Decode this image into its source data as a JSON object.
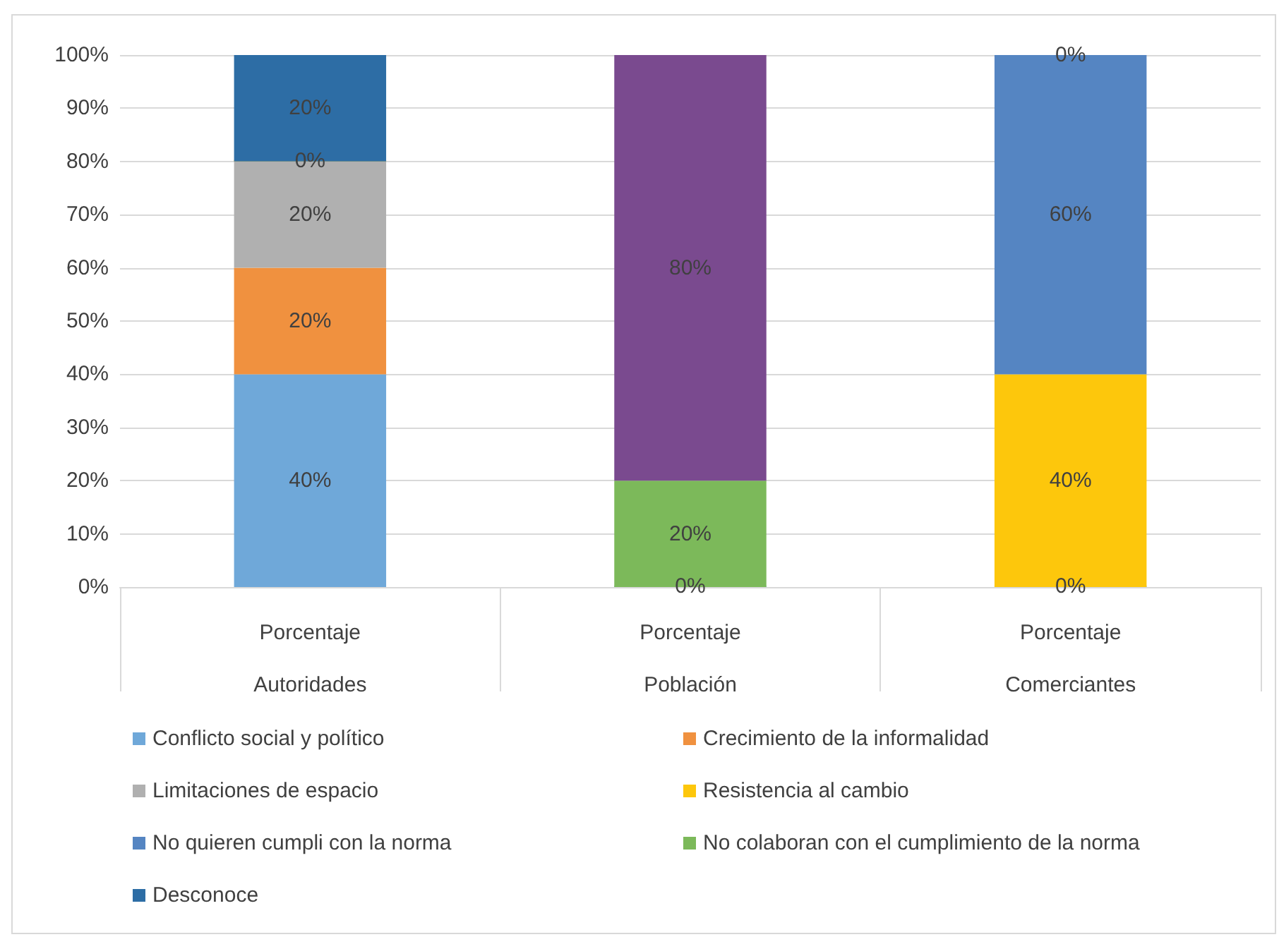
{
  "chart_data": {
    "type": "bar",
    "stacked": true,
    "categories": [
      "Porcentaje\nAutoridades",
      "Porcentaje\nPoblación",
      "Porcentaje\nComerciantes"
    ],
    "ylim": [
      0,
      100
    ],
    "yticks": [
      {
        "value": 0,
        "label": "0%"
      },
      {
        "value": 10,
        "label": "10%"
      },
      {
        "value": 20,
        "label": "20%"
      },
      {
        "value": 30,
        "label": "30%"
      },
      {
        "value": 40,
        "label": "40%"
      },
      {
        "value": 50,
        "label": "50%"
      },
      {
        "value": 60,
        "label": "60%"
      },
      {
        "value": 70,
        "label": "70%"
      },
      {
        "value": 80,
        "label": "80%"
      },
      {
        "value": 90,
        "label": "90%"
      },
      {
        "value": 100,
        "label": "100%"
      }
    ],
    "grid": "y",
    "legend": "bottom",
    "series": [
      {
        "name": "Conflicto social y político",
        "color": "#6fa8d9",
        "values": [
          40,
          0,
          0
        ],
        "value_labels": [
          "40%",
          "0%",
          "0%"
        ]
      },
      {
        "name": "Crecimiento de la informalidad",
        "color": "#f0913f",
        "values": [
          20,
          null,
          null
        ],
        "value_labels": [
          "20%",
          null,
          null
        ]
      },
      {
        "name": "Limitaciones de espacio",
        "color": "#b0b0b0",
        "values": [
          20,
          null,
          null
        ],
        "value_labels": [
          "20%",
          null,
          null
        ]
      },
      {
        "name": "Resistencia al cambio",
        "color": "#fdc70c",
        "values": [
          0,
          null,
          40
        ],
        "value_labels": [
          "0%",
          null,
          "40%"
        ]
      },
      {
        "name": "No quieren cumpli con la norma",
        "color": "#5585c2",
        "values": [
          null,
          null,
          60
        ],
        "value_labels": [
          null,
          null,
          "60%"
        ]
      },
      {
        "name": "No colaboran con el cumplimiento de la norma",
        "color": "#7cb95a",
        "values": [
          null,
          20,
          null
        ],
        "value_labels": [
          null,
          "20%",
          null
        ]
      },
      {
        "name": "Desconoce",
        "color": "#2d6da5",
        "values": [
          20,
          null,
          0
        ],
        "value_labels": [
          "20%",
          null,
          "0%"
        ]
      },
      {
        "color": "#7a4a8f",
        "values": [
          null,
          80,
          null
        ],
        "value_labels": [
          null,
          "80%",
          null
        ]
      }
    ]
  }
}
